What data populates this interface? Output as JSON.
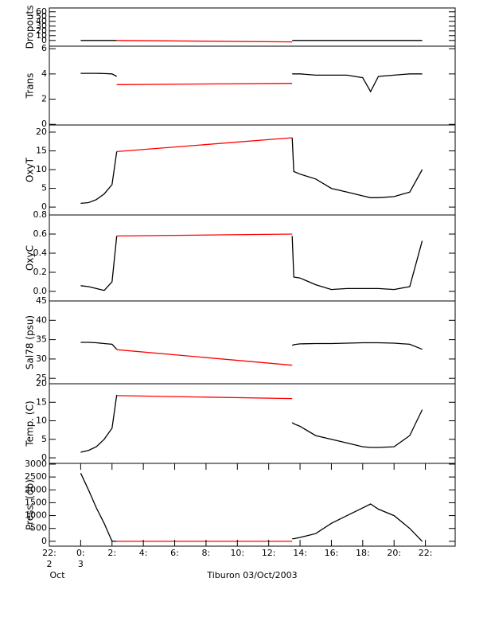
{
  "chart_data": [
    {
      "type": "line",
      "ylabel": "Dropouts",
      "xlim": [
        -2,
        23.9
      ],
      "ylim": [
        -12,
        68
      ],
      "yticks": [
        0,
        10,
        20,
        30,
        40,
        50,
        60
      ],
      "series": [
        {
          "color": "#000000",
          "x": [
            0,
            0.5,
            1,
            1.5,
            2,
            2.3
          ],
          "values": [
            0,
            0,
            0,
            0,
            0,
            0
          ]
        },
        {
          "color": "#000000",
          "x": [
            13.5,
            13.6,
            14,
            15,
            16,
            17,
            18,
            18.5,
            19,
            20,
            21,
            21.8
          ],
          "values": [
            0,
            0,
            0,
            0,
            0,
            0,
            0,
            0,
            0,
            0,
            0,
            0
          ]
        },
        {
          "color": "#ff0000",
          "x": [
            2.3,
            13.5
          ],
          "values": [
            0,
            -3
          ]
        }
      ]
    },
    {
      "type": "line",
      "ylabel": "Trans",
      "xlim": [
        -2,
        23.9
      ],
      "ylim": [
        -0.05,
        6.2
      ],
      "yticks": [
        0,
        2,
        4,
        6
      ],
      "series": [
        {
          "color": "#000000",
          "x": [
            0,
            0.5,
            1,
            1.5,
            2,
            2.3
          ],
          "values": [
            4.05,
            4.05,
            4.05,
            4.03,
            4.0,
            3.8
          ]
        },
        {
          "color": "#000000",
          "x": [
            13.5,
            13.6,
            14,
            15,
            16,
            17,
            18,
            18.5,
            19,
            20,
            21,
            21.8
          ],
          "values": [
            4.0,
            4.0,
            4.0,
            3.9,
            3.9,
            3.9,
            3.7,
            2.6,
            3.8,
            3.9,
            4.0,
            4.0
          ]
        },
        {
          "color": "#ff0000",
          "x": [
            2.3,
            13.5
          ],
          "values": [
            3.15,
            3.25
          ]
        }
      ]
    },
    {
      "type": "line",
      "ylabel": "OxyT",
      "xlim": [
        -2,
        23.9
      ],
      "ylim": [
        -2.1,
        21.9
      ],
      "yticks": [
        0,
        5,
        10,
        15,
        20
      ],
      "series": [
        {
          "color": "#000000",
          "x": [
            0,
            0.5,
            1,
            1.5,
            2,
            2.3
          ],
          "values": [
            1,
            1.2,
            2,
            3.5,
            6,
            14.8
          ]
        },
        {
          "color": "#000000",
          "x": [
            13.5,
            13.6,
            14,
            15,
            16,
            17,
            18,
            18.5,
            19,
            20,
            21,
            21.8
          ],
          "values": [
            18.5,
            9.5,
            8.8,
            7.5,
            5,
            4,
            3,
            2.5,
            2.5,
            2.8,
            4,
            10
          ]
        },
        {
          "color": "#ff0000",
          "x": [
            2.3,
            13.5
          ],
          "values": [
            14.8,
            18.5
          ]
        }
      ]
    },
    {
      "type": "line",
      "ylabel": "OxyC",
      "xlim": [
        -2,
        23.9
      ],
      "ylim": [
        -0.1,
        0.8
      ],
      "yticks": [
        {
          "value": 0,
          "label": "0.0"
        },
        {
          "value": 0.2,
          "label": "0.2"
        },
        {
          "value": 0.4,
          "label": "0.4"
        },
        {
          "value": 0.6,
          "label": "0.6"
        },
        {
          "value": 0.8,
          "label": "0.8"
        }
      ],
      "series": [
        {
          "color": "#000000",
          "x": [
            0,
            0.5,
            1,
            1.5,
            2,
            2.3
          ],
          "values": [
            0.06,
            0.05,
            0.03,
            0.01,
            0.1,
            0.58
          ]
        },
        {
          "color": "#000000",
          "x": [
            13.5,
            13.6,
            14,
            15,
            16,
            17,
            18,
            18.5,
            19,
            20,
            21,
            21.8
          ],
          "values": [
            0.58,
            0.15,
            0.14,
            0.07,
            0.02,
            0.03,
            0.03,
            0.03,
            0.03,
            0.02,
            0.05,
            0.53
          ]
        },
        {
          "color": "#ff0000",
          "x": [
            2.3,
            13.5
          ],
          "values": [
            0.58,
            0.6
          ]
        }
      ]
    },
    {
      "type": "line",
      "ylabel": "Sal78 (psu)",
      "xlim": [
        -2,
        23.9
      ],
      "ylim": [
        23.6,
        45
      ],
      "yticks": [
        25,
        30,
        35,
        40,
        45
      ],
      "series": [
        {
          "color": "#000000",
          "x": [
            0,
            0.5,
            1,
            1.5,
            2,
            2.3
          ],
          "values": [
            34.3,
            34.3,
            34.2,
            34.0,
            33.8,
            32.5
          ]
        },
        {
          "color": "#000000",
          "x": [
            13.5,
            13.6,
            14,
            15,
            16,
            17,
            18,
            18.5,
            19,
            20,
            21,
            21.8
          ],
          "values": [
            33.5,
            33.7,
            33.9,
            34.0,
            34.0,
            34.1,
            34.2,
            34.2,
            34.2,
            34.1,
            33.8,
            32.5
          ]
        },
        {
          "color": "#ff0000",
          "x": [
            2.3,
            13.5
          ],
          "values": [
            32.4,
            28.4
          ]
        }
      ]
    },
    {
      "type": "line",
      "ylabel": "Temp. (C)",
      "xlim": [
        -2,
        23.9
      ],
      "ylim": [
        -1.5,
        20
      ],
      "yticks": [
        0,
        5,
        10,
        15,
        20
      ],
      "series": [
        {
          "color": "#000000",
          "x": [
            0,
            0.5,
            1,
            1.5,
            2,
            2.3
          ],
          "values": [
            1.5,
            2,
            3,
            5,
            8,
            17
          ]
        },
        {
          "color": "#000000",
          "x": [
            13.5,
            13.6,
            14,
            15,
            16,
            17,
            18,
            18.5,
            19,
            20,
            21,
            21.8
          ],
          "values": [
            9.5,
            9.2,
            8.5,
            6,
            5,
            4,
            3,
            2.8,
            2.8,
            3,
            6,
            13
          ]
        },
        {
          "color": "#ff0000",
          "x": [
            2.3,
            13.5
          ],
          "values": [
            16.8,
            16
          ]
        }
      ]
    },
    {
      "type": "line",
      "ylabel": "Press. (db)",
      "xlabel": "Tiburon 03/Oct/2003",
      "xlim": [
        -2,
        23.9
      ],
      "ylim": [
        -190,
        3030
      ],
      "yticks": [
        0,
        500,
        1000,
        1500,
        2000,
        2500,
        3000
      ],
      "xticks": [
        {
          "value": -2,
          "label": "22:"
        },
        {
          "value": 0,
          "label": "0:"
        },
        {
          "value": 2,
          "label": "2:"
        },
        {
          "value": 4,
          "label": "4:"
        },
        {
          "value": 6,
          "label": "6:"
        },
        {
          "value": 8,
          "label": "8:"
        },
        {
          "value": 10,
          "label": "10:"
        },
        {
          "value": 12,
          "label": "12:"
        },
        {
          "value": 14,
          "label": "14:"
        },
        {
          "value": 16,
          "label": "16:"
        },
        {
          "value": 18,
          "label": "18:"
        },
        {
          "value": 20,
          "label": "20:"
        },
        {
          "value": 22,
          "label": "22:"
        }
      ],
      "x_sublabels": [
        {
          "value": -2,
          "label": "2"
        },
        {
          "value": 0,
          "label": "3"
        }
      ],
      "x_month_label": "Oct",
      "series": [
        {
          "color": "#000000",
          "x": [
            0,
            0.5,
            1,
            1.5,
            2,
            2.3
          ],
          "values": [
            2650,
            2000,
            1300,
            700,
            0,
            0
          ]
        },
        {
          "color": "#000000",
          "x": [
            13.5,
            13.6,
            14,
            15,
            16,
            17,
            18,
            18.5,
            19,
            20,
            21,
            21.8
          ],
          "values": [
            100,
            100,
            150,
            300,
            700,
            1000,
            1300,
            1450,
            1250,
            1000,
            500,
            0
          ]
        },
        {
          "color": "#ff0000",
          "x": [
            2.3,
            13.5
          ],
          "values": [
            0,
            0
          ]
        }
      ]
    }
  ]
}
